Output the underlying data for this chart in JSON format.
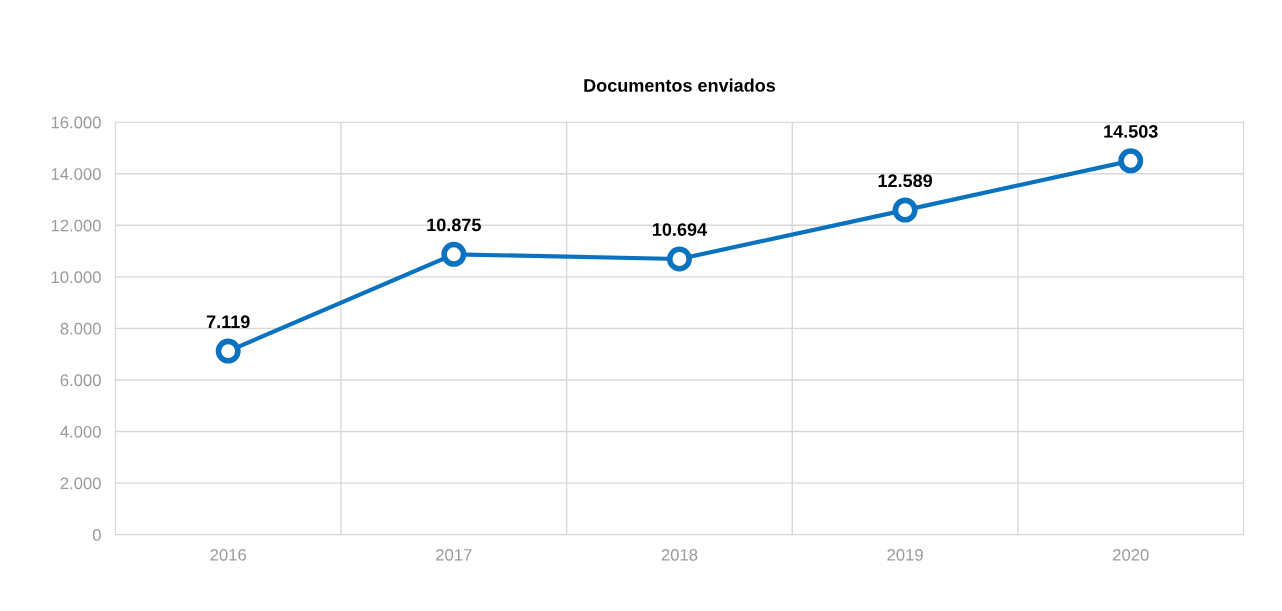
{
  "chart_data": {
    "type": "line",
    "title": "Documentos enviados",
    "categories": [
      "2016",
      "2017",
      "2018",
      "2019",
      "2020"
    ],
    "series": [
      {
        "color": "#0b72c0",
        "values": [
          7119,
          10875,
          10694,
          12589,
          14503
        ],
        "value_labels": [
          "7.119",
          "10.875",
          "10.694",
          "12.589",
          "14.503"
        ]
      }
    ],
    "ylim": [
      0,
      16000
    ],
    "yticks": [
      0,
      {
        "value": 2000,
        "label": "2.000"
      },
      {
        "value": 4000,
        "label": "4.000"
      },
      {
        "value": 6000,
        "label": "6.000"
      },
      {
        "value": 8000,
        "label": "8.000"
      },
      {
        "value": 10000,
        "label": "10.000"
      },
      {
        "value": 12000,
        "label": "12.000"
      },
      {
        "value": 14000,
        "label": "14.000"
      },
      {
        "value": 16000,
        "label": "16.000"
      }
    ],
    "grid": true,
    "marker": "circle",
    "line_style": "solid"
  }
}
